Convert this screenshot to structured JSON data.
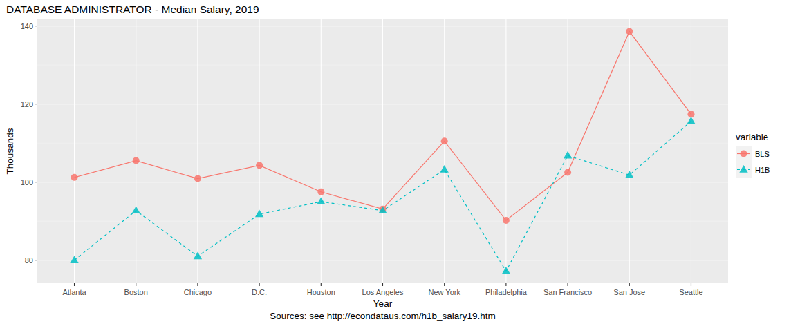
{
  "chart_data": {
    "type": "line",
    "title": "DATABASE ADMINISTRATOR - Median Salary, 2019",
    "x_label": "Year",
    "y_label": "Thousands",
    "caption": "Sources: see http://econdataus.com/h1b_salary19.htm",
    "legend_title": "variable",
    "legend": "right",
    "grid": true,
    "categories": [
      "Atlanta",
      "Boston",
      "Chicago",
      "D.C.",
      "Houston",
      "Los Angeles",
      "New York",
      "Philadelphia",
      "San Francisco",
      "San Jose",
      "Seattle"
    ],
    "series": [
      {
        "name": "BLS",
        "color": "#F8766D",
        "marker": "circle",
        "line_style": "solid",
        "values": [
          101.2,
          105.5,
          100.9,
          104.3,
          97.5,
          93.1,
          110.5,
          90.2,
          102.5,
          138.6,
          117.4
        ]
      },
      {
        "name": "H1B",
        "color": "#00BFC4",
        "marker": "triangle",
        "line_style": "dashed",
        "values": [
          80.0,
          92.7,
          81.0,
          91.8,
          95.0,
          92.7,
          103.2,
          77.2,
          106.8,
          101.8,
          115.6
        ]
      }
    ],
    "ylim": [
      74.1,
      141.7
    ],
    "yticks": [
      80,
      100,
      120,
      140
    ]
  }
}
